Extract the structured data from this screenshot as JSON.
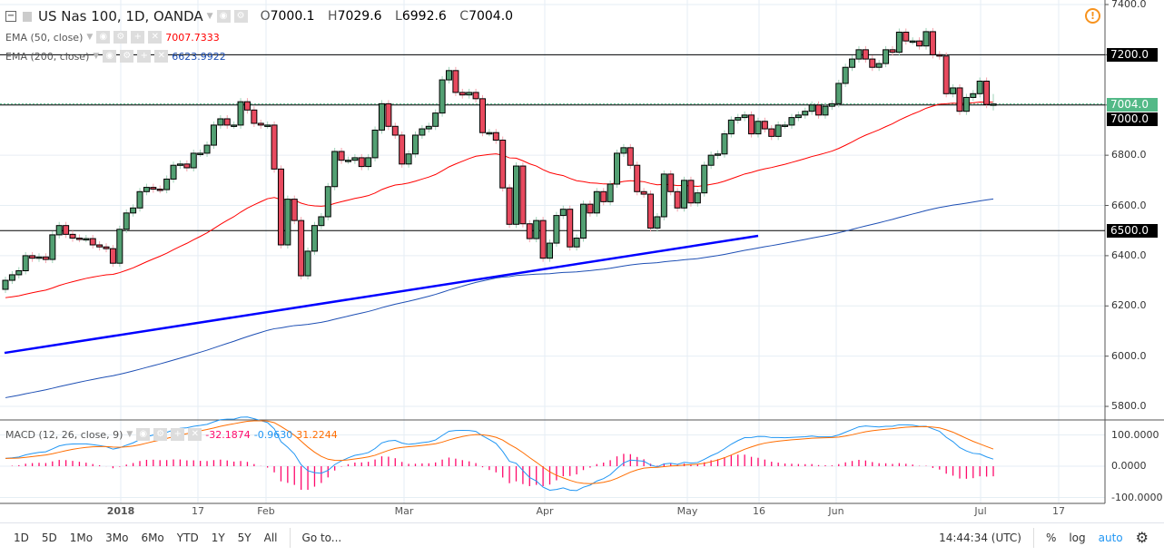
{
  "header": {
    "symbol": "US Nas 100, 1D, OANDA",
    "o_label": "O",
    "o": "7000.1",
    "h_label": "H",
    "h": "7029.6",
    "l_label": "L",
    "l": "6992.6",
    "c_label": "C",
    "c": "7004.0"
  },
  "indicators": {
    "ema50": {
      "label": "EMA (50, close)",
      "value": "7007.7333",
      "color": "#ff0000"
    },
    "ema200": {
      "label": "EMA (200, close)",
      "value": "6623.9922",
      "color": "#1e4fb4"
    },
    "macd": {
      "label": "MACD (12, 26, close, 9)",
      "hist": "-32.1874",
      "macd": "-0.9630",
      "signal": "31.2244",
      "hist_color": "#ff0a6c",
      "macd_color": "#2196f3",
      "signal_color": "#ff6d00"
    }
  },
  "chart_data": {
    "type": "candlestick",
    "ylim": [
      5740,
      7420
    ],
    "price_ticks": [
      "7400.0",
      "7200.0",
      "7000.0",
      "6800.0",
      "6600.0",
      "6400.0",
      "6200.0",
      "6000.0",
      "5800.0"
    ],
    "first_open": 6266,
    "closes": [
      6302,
      6324,
      6340,
      6400,
      6390,
      6395,
      6385,
      6483,
      6520,
      6485,
      6470,
      6468,
      6468,
      6443,
      6435,
      6428,
      6370,
      6505,
      6570,
      6590,
      6655,
      6672,
      6665,
      6663,
      6705,
      6760,
      6765,
      6750,
      6808,
      6808,
      6840,
      6920,
      6945,
      6920,
      6920,
      7013,
      6980,
      6927,
      6920,
      6920,
      6745,
      6443,
      6625,
      6540,
      6320,
      6418,
      6520,
      6555,
      6675,
      6815,
      6780,
      6780,
      6790,
      6755,
      6790,
      6900,
      7005,
      6915,
      6880,
      6765,
      6805,
      6880,
      6905,
      6915,
      6968,
      7100,
      7137,
      7050,
      7040,
      7050,
      7025,
      6890,
      6890,
      6860,
      6670,
      6525,
      6757,
      6527,
      6468,
      6540,
      6390,
      6450,
      6560,
      6585,
      6435,
      6470,
      6605,
      6570,
      6655,
      6615,
      6685,
      6808,
      6830,
      6760,
      6655,
      6645,
      6510,
      6555,
      6725,
      6655,
      6590,
      6700,
      6610,
      6650,
      6760,
      6800,
      6805,
      6885,
      6940,
      6950,
      6960,
      6885,
      6935,
      6905,
      6875,
      6920,
      6920,
      6950,
      6960,
      6975,
      7000,
      6960,
      6995,
      7005,
      7086,
      7150,
      7183,
      7220,
      7183,
      7150,
      7165,
      7220,
      7210,
      7290,
      7255,
      7255,
      7235,
      7292,
      7200,
      7195,
      7045,
      7068,
      6975,
      7030,
      7045,
      7095,
      7002
    ],
    "last_bar": {
      "o": 7000.1,
      "h": 7029.6,
      "l": 6992.6,
      "c": 7004.0
    },
    "ema50_seed": 6230,
    "ema200_seed": 5830,
    "horizontal_lines": [
      7200,
      7000,
      6500
    ],
    "trendline": {
      "from_price": 6013,
      "to_price": 6479,
      "color": "#0000ff"
    },
    "price_labels": [
      {
        "text": "7200.0",
        "bg": "#000000"
      },
      {
        "text": "7004.0",
        "bg": "#53b987"
      },
      {
        "text": "7000.0",
        "bg": "#000000"
      },
      {
        "text": "6500.0",
        "bg": "#000000"
      }
    ],
    "macd_ticks": [
      "100.0000",
      "0.0000",
      "-100.0000"
    ],
    "x_ticks": [
      "2018",
      "17",
      "Feb",
      "Mar",
      "Apr",
      "May",
      "16",
      "Jun",
      "Jul",
      "17"
    ],
    "up_color": "#53a073",
    "down_color": "#e84a5f"
  },
  "toolbar": {
    "ranges": [
      "1D",
      "5D",
      "1Mo",
      "3Mo",
      "6Mo",
      "YTD",
      "1Y",
      "5Y",
      "All"
    ],
    "goto": "Go to...",
    "time": "14:44:34 (UTC)",
    "percent": "%",
    "log": "log",
    "auto": "auto"
  }
}
